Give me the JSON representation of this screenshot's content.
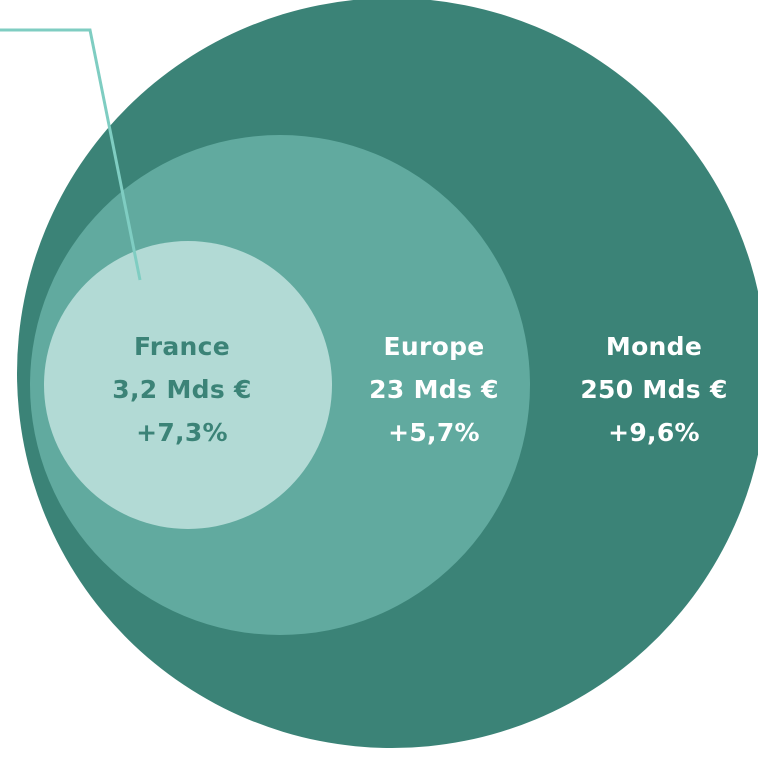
{
  "colors": {
    "background": "#ffffff",
    "monde_fill": "#3b8377",
    "europe_fill": "#61aa9f",
    "france_fill": "#b2dad5",
    "connector": "#7fcdc2",
    "label_dark": "#3b8377",
    "label_light": "#ffffff"
  },
  "regions": {
    "france": {
      "name": "France",
      "value": "3,2 Mds €",
      "growth": "+7,3%"
    },
    "europe": {
      "name": "Europe",
      "value": "23 Mds €",
      "growth": "+5,7%"
    },
    "monde": {
      "name": "Monde",
      "value": "250 Mds €",
      "growth": "+9,6%"
    }
  }
}
